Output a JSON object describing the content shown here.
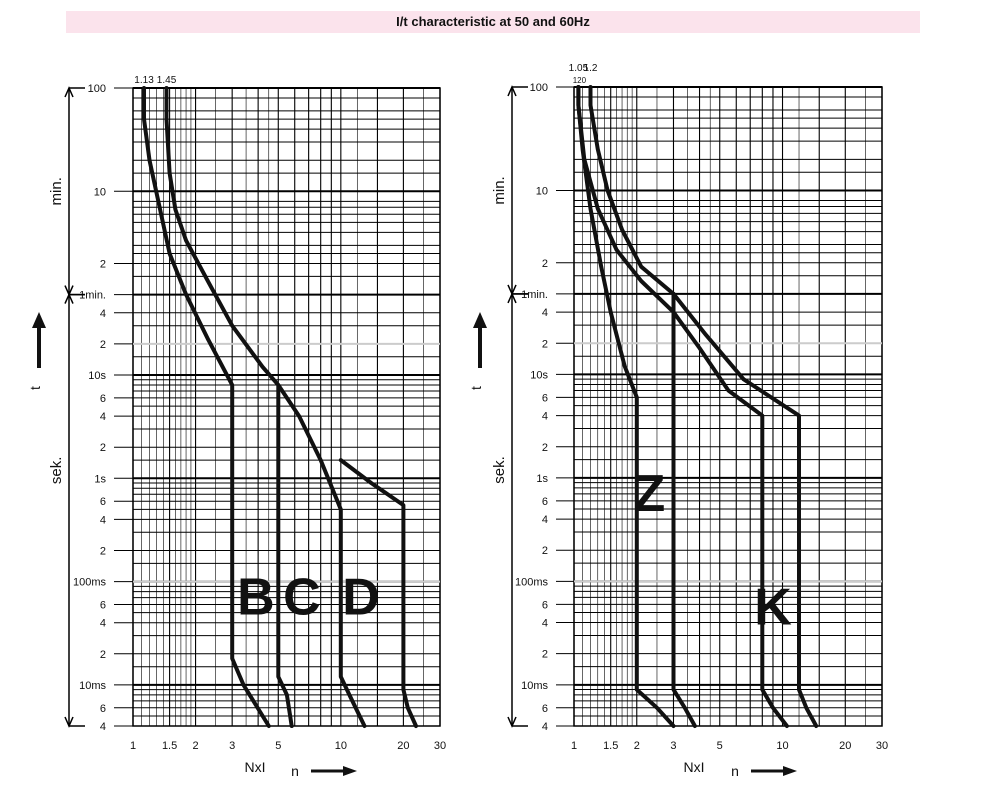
{
  "title": "I/t characteristic at 50 and 60Hz",
  "colors": {
    "title_background": "#fbe3ec",
    "curve": "#111111",
    "grid": "#000000"
  },
  "chart_data": [
    {
      "type": "line",
      "x_scale": "log",
      "y_scale": "log",
      "xlabel": "NxI",
      "xarrow_label": "n",
      "ylabel": "t",
      "xlim": [
        1,
        30
      ],
      "ylim_seconds": [
        0.004,
        6000
      ],
      "x_tick_labels": [
        {
          "x": 1,
          "label": "1"
        },
        {
          "x": 1.5,
          "label": "1.5"
        },
        {
          "x": 2,
          "label": "2"
        },
        {
          "x": 3,
          "label": "3"
        },
        {
          "x": 5,
          "label": "5"
        },
        {
          "x": 10,
          "label": "10"
        },
        {
          "x": 20,
          "label": "20"
        },
        {
          "x": 30,
          "label": "30"
        }
      ],
      "top_labels": [
        {
          "x": 1.13,
          "label": "1.13"
        },
        {
          "x": 1.45,
          "label": "1.45"
        }
      ],
      "y_ticks": [
        {
          "t": 6000,
          "label": "100"
        },
        {
          "t": 600,
          "label": "10"
        },
        {
          "t": 120,
          "label": "2"
        },
        {
          "t": 60,
          "label": "1min."
        },
        {
          "t": 40,
          "label": "4"
        },
        {
          "t": 20,
          "label": "2"
        },
        {
          "t": 10,
          "label": "10s"
        },
        {
          "t": 6,
          "label": "6"
        },
        {
          "t": 4,
          "label": "4"
        },
        {
          "t": 2,
          "label": "2"
        },
        {
          "t": 1,
          "label": "1s"
        },
        {
          "t": 0.6,
          "label": "6"
        },
        {
          "t": 0.4,
          "label": "4"
        },
        {
          "t": 0.2,
          "label": "2"
        },
        {
          "t": 0.1,
          "label": "100ms"
        },
        {
          "t": 0.06,
          "label": "6"
        },
        {
          "t": 0.04,
          "label": "4"
        },
        {
          "t": 0.02,
          "label": "2"
        },
        {
          "t": 0.01,
          "label": "10ms"
        },
        {
          "t": 0.006,
          "label": "6"
        },
        {
          "t": 0.004,
          "label": "4"
        }
      ],
      "bracket_labels": [
        {
          "label": "min.",
          "from": 60,
          "to": 6000
        },
        {
          "label": "sek.",
          "from": 0.004,
          "to": 60
        }
      ],
      "series": [
        {
          "points": [
            [
              1.13,
              6000
            ],
            [
              1.13,
              3000
            ],
            [
              1.2,
              1200
            ],
            [
              1.35,
              400
            ],
            [
              1.5,
              150
            ],
            [
              1.8,
              60
            ],
            [
              2.3,
              22
            ],
            [
              3,
              8
            ],
            [
              3,
              8
            ],
            [
              3,
              0.018
            ],
            [
              3.4,
              0.01
            ],
            [
              4.5,
              0.004
            ]
          ]
        },
        {
          "points": [
            [
              1.45,
              6000
            ],
            [
              1.45,
              3000
            ],
            [
              1.5,
              900
            ],
            [
              1.6,
              400
            ],
            [
              1.8,
              200
            ],
            [
              2.3,
              80
            ],
            [
              3,
              30
            ],
            [
              4.2,
              12
            ],
            [
              5,
              8
            ],
            [
              5,
              8
            ],
            [
              5,
              0.012
            ],
            [
              5.5,
              0.008
            ],
            [
              5.8,
              0.004
            ]
          ]
        },
        {
          "points": [
            [
              5,
              8
            ],
            [
              6.3,
              4
            ],
            [
              8,
              1.5
            ],
            [
              10,
              0.5
            ],
            [
              10,
              0.5
            ],
            [
              10,
              0.012
            ],
            [
              11,
              0.008
            ],
            [
              13,
              0.004
            ]
          ]
        },
        {
          "points": [
            [
              10,
              1.5
            ],
            [
              14,
              0.9
            ],
            [
              20,
              0.55
            ],
            [
              20,
              0.55
            ],
            [
              20,
              0.009
            ],
            [
              21,
              0.006
            ],
            [
              23,
              0.004
            ]
          ]
        }
      ],
      "curve_letters": [
        {
          "label": "B",
          "x": 3.9,
          "t": 0.075
        },
        {
          "label": "C",
          "x": 6.5,
          "t": 0.075
        },
        {
          "label": "D",
          "x": 12.5,
          "t": 0.075
        }
      ]
    },
    {
      "type": "line",
      "x_scale": "log",
      "y_scale": "log",
      "xlabel": "NxI",
      "xarrow_label": "n",
      "ylabel": "t",
      "xlim": [
        1,
        30
      ],
      "ylim_seconds": [
        0.004,
        6000
      ],
      "x_tick_labels": [
        {
          "x": 1,
          "label": "1"
        },
        {
          "x": 1.5,
          "label": "1.5"
        },
        {
          "x": 2,
          "label": "2"
        },
        {
          "x": 3,
          "label": "3"
        },
        {
          "x": 5,
          "label": "5"
        },
        {
          "x": 10,
          "label": "10"
        },
        {
          "x": 20,
          "label": "20"
        },
        {
          "x": 30,
          "label": "30"
        }
      ],
      "top_labels": [
        {
          "x": 1.05,
          "label": "1.05"
        },
        {
          "x": 1.05,
          "label": "120"
        },
        {
          "x": 1.2,
          "label": "1.2"
        }
      ],
      "y_ticks": [
        {
          "t": 6000,
          "label": "100"
        },
        {
          "t": 600,
          "label": "10"
        },
        {
          "t": 120,
          "label": "2"
        },
        {
          "t": 60,
          "label": "1min."
        },
        {
          "t": 40,
          "label": "4"
        },
        {
          "t": 20,
          "label": "2"
        },
        {
          "t": 10,
          "label": "10s"
        },
        {
          "t": 6,
          "label": "6"
        },
        {
          "t": 4,
          "label": "4"
        },
        {
          "t": 2,
          "label": "2"
        },
        {
          "t": 1,
          "label": "1s"
        },
        {
          "t": 0.6,
          "label": "6"
        },
        {
          "t": 0.4,
          "label": "4"
        },
        {
          "t": 0.2,
          "label": "2"
        },
        {
          "t": 0.1,
          "label": "100ms"
        },
        {
          "t": 0.06,
          "label": "6"
        },
        {
          "t": 0.04,
          "label": "4"
        },
        {
          "t": 0.02,
          "label": "2"
        },
        {
          "t": 0.01,
          "label": "10ms"
        },
        {
          "t": 0.006,
          "label": "6"
        },
        {
          "t": 0.004,
          "label": "4"
        }
      ],
      "bracket_labels": [
        {
          "label": "min.",
          "from": 60,
          "to": 6000
        },
        {
          "label": "sek.",
          "from": 0.004,
          "to": 60
        }
      ],
      "series": [
        {
          "points": [
            [
              1.05,
              6000
            ],
            [
              1.05,
              4000
            ],
            [
              1.1,
              1500
            ],
            [
              1.2,
              400
            ],
            [
              1.35,
              110
            ],
            [
              1.5,
              40
            ],
            [
              1.75,
              12
            ],
            [
              2,
              6
            ],
            [
              2,
              6
            ],
            [
              2,
              0.009
            ],
            [
              2.5,
              0.006
            ],
            [
              3,
              0.004
            ]
          ]
        },
        {
          "points": [
            [
              1.05,
              6000
            ],
            [
              1.05,
              4000
            ],
            [
              1.12,
              1200
            ],
            [
              1.3,
              400
            ],
            [
              1.6,
              160
            ],
            [
              2.1,
              80
            ],
            [
              3,
              40
            ]
          ]
        },
        {
          "points": [
            [
              1.2,
              6000
            ],
            [
              1.2,
              4000
            ],
            [
              1.3,
              1500
            ],
            [
              1.45,
              600
            ],
            [
              1.7,
              250
            ],
            [
              2.1,
              110
            ],
            [
              3,
              60
            ]
          ]
        },
        {
          "points": [
            [
              3,
              60
            ],
            [
              3,
              40
            ],
            [
              3,
              0.009
            ],
            [
              3.4,
              0.006
            ],
            [
              3.8,
              0.004
            ]
          ]
        },
        {
          "points": [
            [
              3,
              40
            ],
            [
              4,
              18
            ],
            [
              5.5,
              7
            ],
            [
              8,
              4
            ],
            [
              8,
              4
            ],
            [
              8,
              0.009
            ],
            [
              9,
              0.006
            ],
            [
              10.5,
              0.004
            ]
          ]
        },
        {
          "points": [
            [
              3,
              60
            ],
            [
              4.3,
              24
            ],
            [
              6.5,
              9
            ],
            [
              12,
              4
            ],
            [
              12,
              4
            ],
            [
              12,
              0.009
            ],
            [
              13,
              0.006
            ],
            [
              14.5,
              0.004
            ]
          ]
        }
      ],
      "curve_letters": [
        {
          "label": "Z",
          "x": 2.3,
          "t": 0.75
        },
        {
          "label": "K",
          "x": 9,
          "t": 0.06
        }
      ]
    }
  ]
}
